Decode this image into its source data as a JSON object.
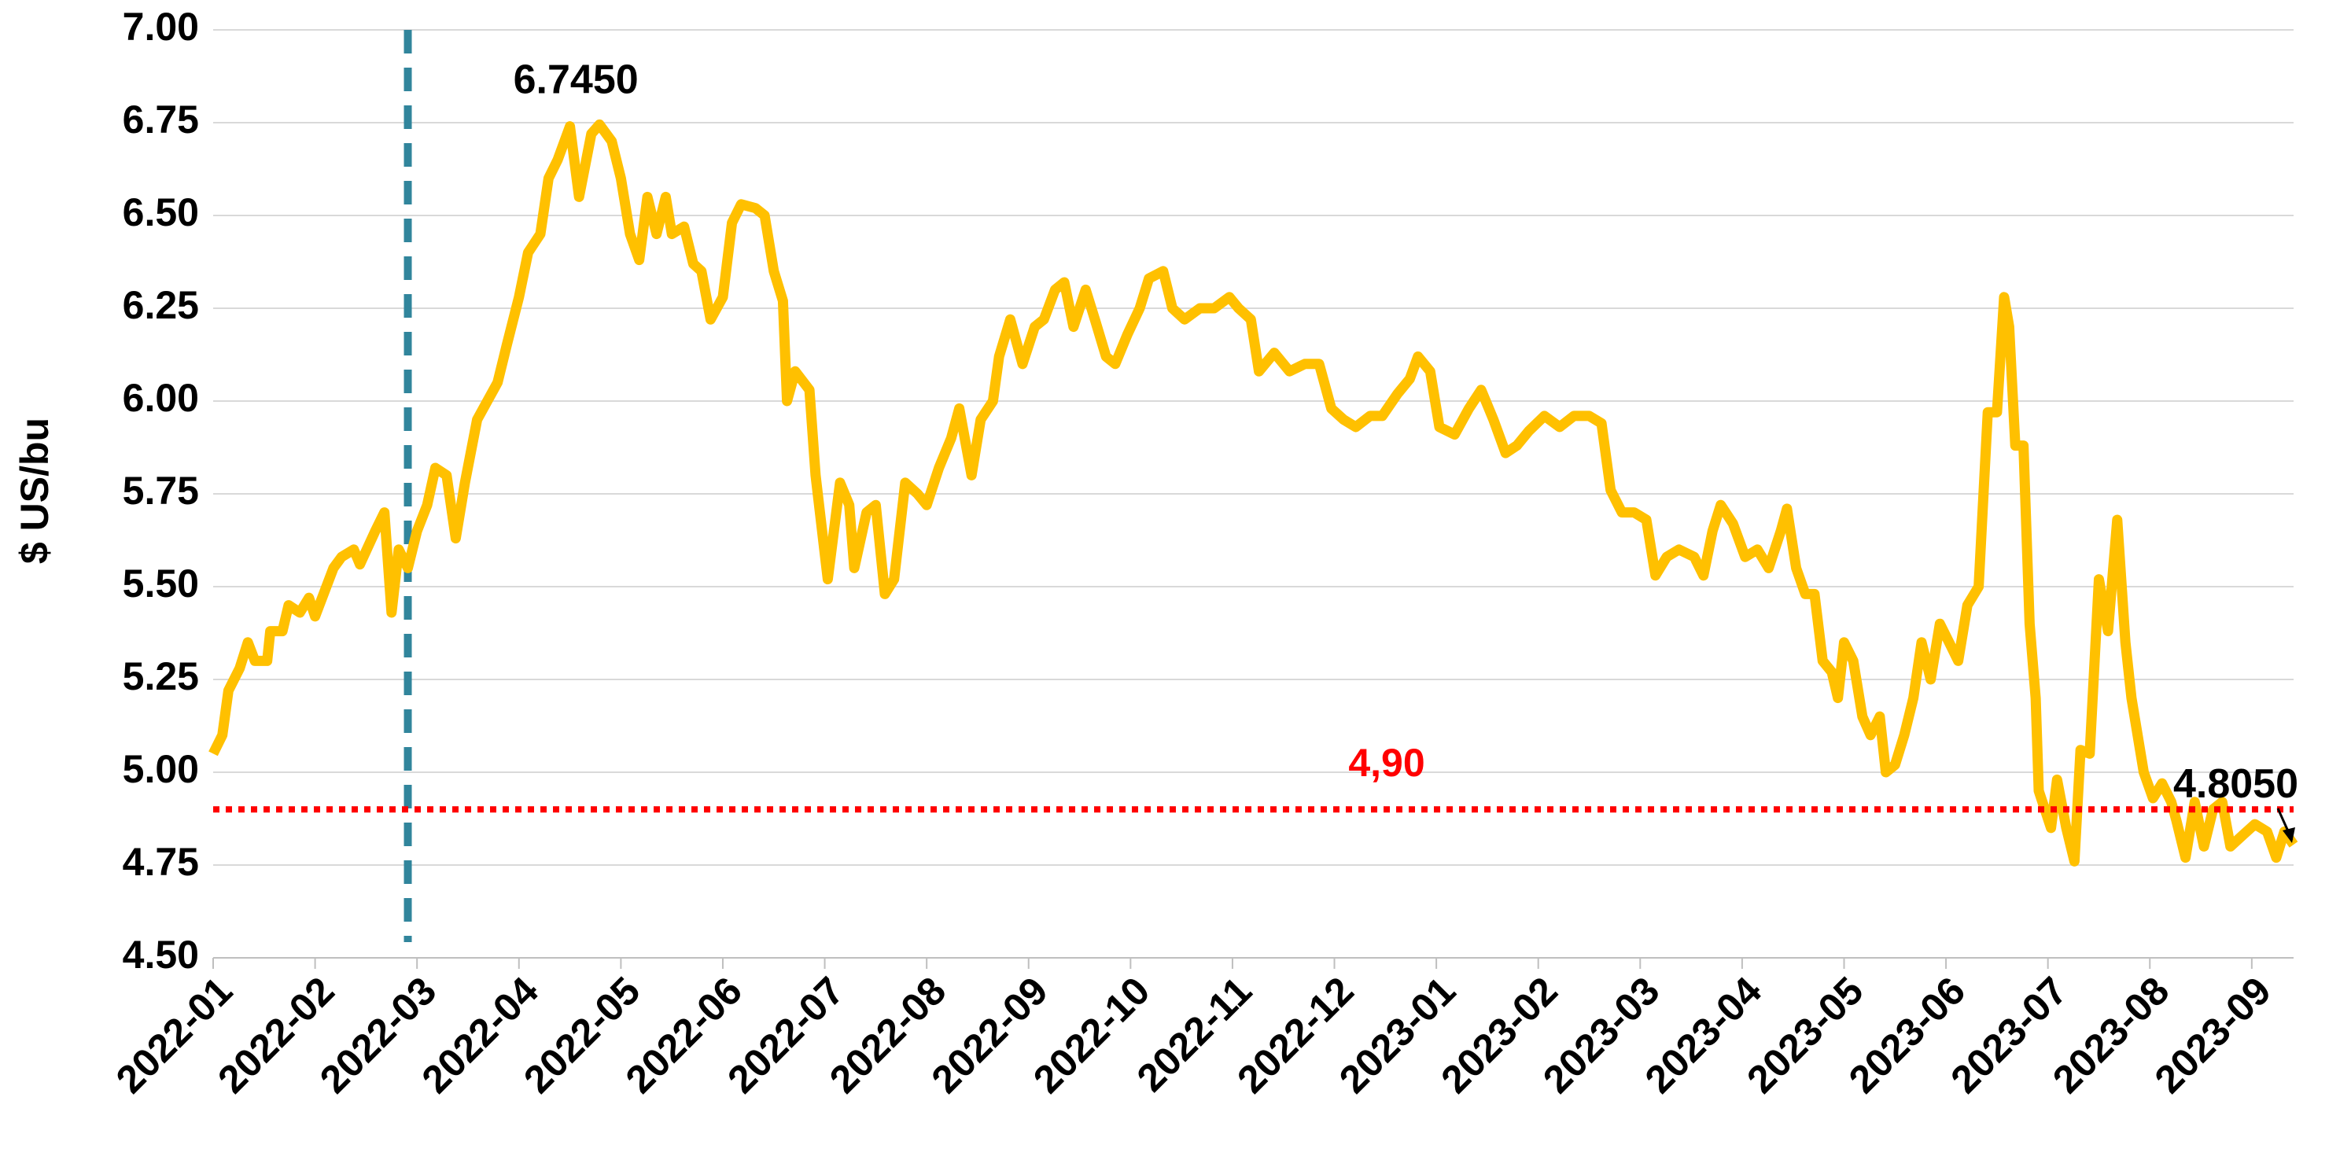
{
  "chart_data": {
    "type": "line",
    "y_label": "$ US/bu",
    "x": [
      0,
      0.09,
      0.15,
      0.26,
      0.34,
      0.41,
      0.53,
      0.56,
      0.68,
      0.74,
      0.85,
      0.94,
      1.0,
      1.18,
      1.26,
      1.38,
      1.44,
      1.59,
      1.68,
      1.75,
      1.82,
      1.91,
      2.0,
      2.1,
      2.18,
      2.29,
      2.38,
      2.47,
      2.59,
      2.69,
      2.79,
      2.88,
      3.0,
      3.09,
      3.21,
      3.29,
      3.38,
      3.5,
      3.59,
      3.71,
      3.79,
      3.91,
      4.0,
      4.09,
      4.18,
      4.26,
      4.35,
      4.44,
      4.5,
      4.62,
      4.71,
      4.79,
      4.88,
      5.0,
      5.09,
      5.18,
      5.32,
      5.41,
      5.5,
      5.59,
      5.63,
      5.71,
      5.85,
      5.91,
      6.03,
      6.15,
      6.24,
      6.29,
      6.41,
      6.5,
      6.59,
      6.68,
      6.79,
      6.91,
      7.0,
      7.12,
      7.24,
      7.32,
      7.44,
      7.53,
      7.65,
      7.71,
      7.82,
      7.94,
      8.06,
      8.15,
      8.26,
      8.35,
      8.44,
      8.56,
      8.65,
      8.76,
      8.85,
      8.97,
      9.09,
      9.18,
      9.32,
      9.41,
      9.53,
      9.68,
      9.82,
      9.97,
      10.06,
      10.18,
      10.26,
      10.41,
      10.56,
      10.71,
      10.85,
      10.97,
      11.09,
      11.21,
      11.35,
      11.47,
      11.62,
      11.74,
      11.82,
      11.94,
      12.03,
      12.18,
      12.32,
      12.44,
      12.56,
      12.68,
      12.79,
      12.91,
      13.06,
      13.21,
      13.35,
      13.5,
      13.62,
      13.71,
      13.82,
      13.94,
      14.06,
      14.15,
      14.26,
      14.38,
      14.53,
      14.62,
      14.71,
      14.79,
      14.91,
      15.03,
      15.15,
      15.26,
      15.38,
      15.44,
      15.53,
      15.62,
      15.71,
      15.79,
      15.88,
      15.94,
      16.0,
      16.09,
      16.18,
      16.26,
      16.35,
      16.41,
      16.5,
      16.59,
      16.68,
      16.76,
      16.85,
      16.94,
      17.03,
      17.12,
      17.21,
      17.32,
      17.41,
      17.5,
      17.57,
      17.62,
      17.68,
      17.76,
      17.82,
      17.88,
      17.91,
      17.97,
      18.03,
      18.09,
      18.18,
      18.26,
      18.32,
      18.41,
      18.5,
      18.59,
      18.68,
      18.76,
      18.82,
      18.94,
      19.03,
      19.12,
      19.21,
      19.26,
      19.35,
      19.44,
      19.53,
      19.62,
      19.71,
      19.79,
      19.91,
      20.03,
      20.15,
      20.24,
      20.32,
      20.41
    ],
    "series": [
      {
        "color": "#ffc000",
        "values": [
          5.05,
          5.1,
          5.22,
          5.28,
          5.35,
          5.3,
          5.3,
          5.38,
          5.38,
          5.45,
          5.43,
          5.47,
          5.42,
          5.55,
          5.58,
          5.6,
          5.56,
          5.65,
          5.7,
          5.43,
          5.6,
          5.55,
          5.65,
          5.72,
          5.82,
          5.8,
          5.63,
          5.78,
          5.95,
          6.0,
          6.05,
          6.15,
          6.28,
          6.4,
          6.45,
          6.6,
          6.65,
          6.74,
          6.55,
          6.72,
          6.745,
          6.7,
          6.6,
          6.45,
          6.38,
          6.55,
          6.45,
          6.55,
          6.45,
          6.47,
          6.37,
          6.35,
          6.22,
          6.28,
          6.48,
          6.53,
          6.52,
          6.5,
          6.35,
          6.27,
          6.0,
          6.08,
          6.03,
          5.8,
          5.52,
          5.78,
          5.72,
          5.55,
          5.7,
          5.72,
          5.48,
          5.52,
          5.78,
          5.75,
          5.72,
          5.82,
          5.9,
          5.98,
          5.8,
          5.95,
          6.0,
          6.12,
          6.22,
          6.1,
          6.2,
          6.22,
          6.3,
          6.32,
          6.2,
          6.3,
          6.22,
          6.12,
          6.1,
          6.18,
          6.25,
          6.33,
          6.35,
          6.25,
          6.22,
          6.25,
          6.25,
          6.28,
          6.25,
          6.22,
          6.08,
          6.13,
          6.08,
          6.1,
          6.1,
          5.98,
          5.95,
          5.93,
          5.96,
          5.96,
          6.02,
          6.06,
          6.12,
          6.08,
          5.93,
          5.91,
          5.98,
          6.03,
          5.95,
          5.86,
          5.88,
          5.92,
          5.96,
          5.93,
          5.96,
          5.96,
          5.94,
          5.76,
          5.7,
          5.7,
          5.68,
          5.53,
          5.58,
          5.6,
          5.58,
          5.53,
          5.65,
          5.72,
          5.67,
          5.58,
          5.6,
          5.55,
          5.65,
          5.71,
          5.55,
          5.48,
          5.48,
          5.3,
          5.27,
          5.2,
          5.35,
          5.3,
          5.15,
          5.1,
          5.15,
          5.0,
          5.02,
          5.1,
          5.2,
          5.35,
          5.25,
          5.4,
          5.35,
          5.3,
          5.45,
          5.5,
          5.97,
          5.97,
          6.28,
          6.2,
          5.88,
          5.88,
          5.4,
          5.2,
          4.95,
          4.9,
          4.85,
          4.98,
          4.85,
          4.76,
          5.06,
          5.05,
          5.52,
          5.38,
          5.68,
          5.35,
          5.2,
          5.0,
          4.93,
          4.97,
          4.92,
          4.87,
          4.77,
          4.92,
          4.8,
          4.9,
          4.92,
          4.8,
          4.83,
          4.86,
          4.84,
          4.77,
          4.84,
          4.805
        ]
      }
    ],
    "xlim": [
      0,
      20.41
    ],
    "xticks": [
      {
        "value": 0,
        "label": "2022-01"
      },
      {
        "value": 1,
        "label": "2022-02"
      },
      {
        "value": 2,
        "label": "2022-03"
      },
      {
        "value": 3,
        "label": "2022-04"
      },
      {
        "value": 4,
        "label": "2022-05"
      },
      {
        "value": 5,
        "label": "2022-06"
      },
      {
        "value": 6,
        "label": "2022-07"
      },
      {
        "value": 7,
        "label": "2022-08"
      },
      {
        "value": 8,
        "label": "2022-09"
      },
      {
        "value": 9,
        "label": "2022-10"
      },
      {
        "value": 10,
        "label": "2022-11"
      },
      {
        "value": 11,
        "label": "2022-12"
      },
      {
        "value": 12,
        "label": "2023-01"
      },
      {
        "value": 13,
        "label": "2023-02"
      },
      {
        "value": 14,
        "label": "2023-03"
      },
      {
        "value": 15,
        "label": "2023-04"
      },
      {
        "value": 16,
        "label": "2023-05"
      },
      {
        "value": 17,
        "label": "2023-06"
      },
      {
        "value": 18,
        "label": "2023-07"
      },
      {
        "value": 19,
        "label": "2023-08"
      },
      {
        "value": 20,
        "label": "2023-09"
      }
    ],
    "ylim": [
      4.5,
      7
    ],
    "yticks": [
      {
        "value": 4.5,
        "label": "4.50"
      },
      {
        "value": 4.75,
        "label": "4.75"
      },
      {
        "value": 5,
        "label": "5.00"
      },
      {
        "value": 5.25,
        "label": "5.25"
      },
      {
        "value": 5.5,
        "label": "5.50"
      },
      {
        "value": 5.75,
        "label": "5.75"
      },
      {
        "value": 6,
        "label": "6.00"
      },
      {
        "value": 6.25,
        "label": "6.25"
      },
      {
        "value": 6.5,
        "label": "6.50"
      },
      {
        "value": 6.75,
        "label": "6.75"
      },
      {
        "value": 7,
        "label": "7.00"
      }
    ],
    "grid": true,
    "hline": {
      "value": 4.9,
      "label": "4,90",
      "color": "#ff0000"
    },
    "vline": {
      "value": 1.91,
      "color": "#31859c"
    },
    "annotations": [
      {
        "label": "6.7450",
        "x": 3.79,
        "y": 6.745
      },
      {
        "label": "4.8050",
        "x": 20.41,
        "y": 4.805
      }
    ]
  }
}
